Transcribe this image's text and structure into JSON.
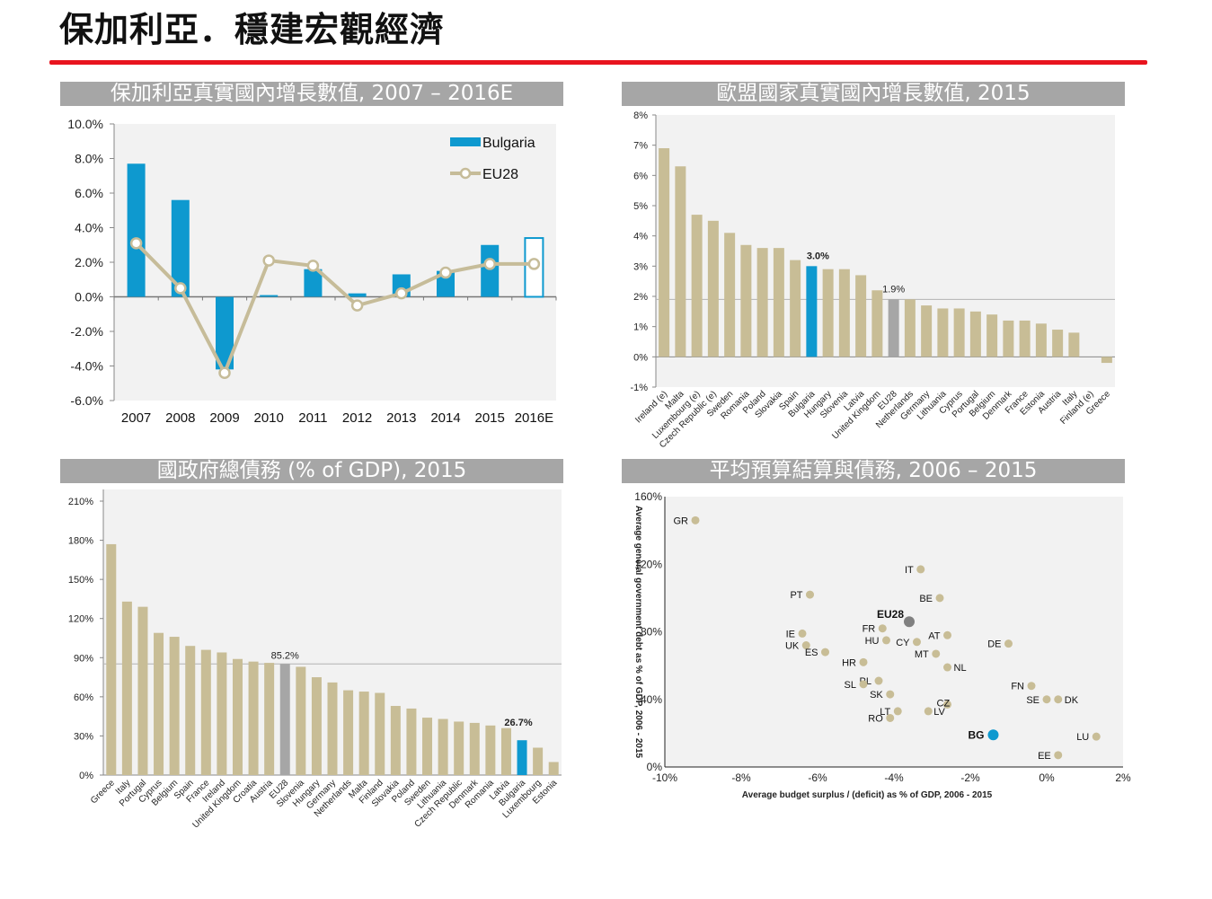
{
  "page": {
    "title": "保加利亞．穩建宏觀經濟"
  },
  "colors": {
    "accent_red": "#e8141e",
    "bulgaria_blue": "#0e99cf",
    "eu_grey": "#a6a6a6",
    "tan": "#c8bd96",
    "eu_line": "#c6bc99"
  },
  "chart_data": [
    {
      "type": "bar",
      "title": "保加利亞真實國內增長數值, 2007 – 2016E",
      "categories": [
        "2007",
        "2008",
        "2009",
        "2010",
        "2011",
        "2012",
        "2013",
        "2014",
        "2015",
        "2016E"
      ],
      "y_ticks": [
        "10.0%",
        "8.0%",
        "6.0%",
        "4.0%",
        "2.0%",
        "0.0%",
        "-2.0%",
        "-4.0%",
        "-6.0%"
      ],
      "ylim": [
        -6,
        10
      ],
      "legend": {
        "position": "top-right"
      },
      "series": [
        {
          "name": "Bulgaria",
          "kind": "bar",
          "color": "#0e99cf",
          "values": [
            7.7,
            5.6,
            -4.2,
            0.1,
            1.6,
            0.2,
            1.3,
            1.5,
            3.0,
            3.4
          ]
        },
        {
          "name": "EU28",
          "kind": "line",
          "color": "#c6bc99",
          "values": [
            3.1,
            0.5,
            -4.4,
            2.1,
            1.8,
            -0.5,
            0.2,
            1.4,
            1.9,
            1.9
          ]
        }
      ]
    },
    {
      "type": "bar",
      "title": "歐盟國家真實國內增長數值, 2015",
      "categories": [
        "Ireland (e)",
        "Malta",
        "Luxembourg (e)",
        "Czech Republic (e)",
        "Sweden",
        "Romania",
        "Poland",
        "Slovakia",
        "Spain",
        "Bulgaria",
        "Hungary",
        "Slovenia",
        "Latvia",
        "United Kingdom",
        "EU28",
        "Netherlands",
        "Germany",
        "Lithuania",
        "Cyprus",
        "Portugal",
        "Belgium",
        "Denmark",
        "France",
        "Estonia",
        "Austria",
        "Italy",
        "Finland (e)",
        "Greece"
      ],
      "values": [
        6.9,
        6.3,
        4.7,
        4.5,
        4.1,
        3.7,
        3.6,
        3.6,
        3.2,
        3.0,
        2.9,
        2.9,
        2.7,
        2.2,
        1.9,
        1.9,
        1.7,
        1.6,
        1.6,
        1.5,
        1.4,
        1.2,
        1.2,
        1.1,
        0.9,
        0.8,
        0.0,
        -0.2
      ],
      "y_ticks": [
        "8%",
        "7%",
        "6%",
        "5%",
        "4%",
        "3%",
        "2%",
        "1%",
        "0%",
        "-1%"
      ],
      "ylim": [
        -1,
        8
      ],
      "highlight": {
        "Bulgaria": "#0e99cf",
        "EU28": "#a6a6a6"
      },
      "labels": {
        "Bulgaria": "3.0%",
        "EU28": "1.9%"
      },
      "reference_line": 1.9
    },
    {
      "type": "bar",
      "title": "國政府總債務 (% of GDP), 2015",
      "categories": [
        "Greece",
        "Italy",
        "Portugal",
        "Cyprus",
        "Belgium",
        "Spain",
        "France",
        "Ireland",
        "United Kingdom",
        "Croatia",
        "Austria",
        "EU28",
        "Slovenia",
        "Hungary",
        "Germany",
        "Netherlands",
        "Malta",
        "Finland",
        "Slovakia",
        "Poland",
        "Sweden",
        "Lithuania",
        "Czech Republic",
        "Denmark",
        "Romania",
        "Latvia",
        "Bulgaria",
        "Luxembourg",
        "Estonia"
      ],
      "values": [
        177,
        133,
        129,
        109,
        106,
        99,
        96,
        94,
        89,
        87,
        86,
        85.2,
        83,
        75,
        71,
        65,
        64,
        63,
        53,
        51,
        44,
        43,
        41,
        40,
        38,
        36,
        26.7,
        21,
        10
      ],
      "y_ticks": [
        "210%",
        "180%",
        "150%",
        "120%",
        "90%",
        "60%",
        "30%",
        "0%"
      ],
      "ylim": [
        0,
        210
      ],
      "highlight": {
        "Bulgaria": "#0e99cf",
        "EU28": "#a6a6a6"
      },
      "labels": {
        "EU28": "85.2%",
        "Bulgaria": "26.7%"
      },
      "reference_line": 85.2
    },
    {
      "type": "scatter",
      "title": "平均預算結算與債務, 2006 – 2015",
      "xlabel": "Average budget surplus / (deficit) as % of GDP, 2006 - 2015",
      "ylabel": "Average general government debt as % of GDP, 2006 - 2015",
      "x_ticks": [
        "-10%",
        "-8%",
        "-6%",
        "-4%",
        "-2%",
        "0%",
        "2%"
      ],
      "y_ticks": [
        "160%",
        "120%",
        "80%",
        "40%",
        "0%"
      ],
      "xlim": [
        -10,
        2
      ],
      "ylim": [
        0,
        160
      ],
      "points": [
        {
          "label": "GR",
          "x": -9.2,
          "y": 146
        },
        {
          "label": "IT",
          "x": -3.3,
          "y": 117
        },
        {
          "label": "PT",
          "x": -6.2,
          "y": 102
        },
        {
          "label": "BE",
          "x": -2.8,
          "y": 100
        },
        {
          "label": "EU28",
          "x": -3.6,
          "y": 86
        },
        {
          "label": "FR",
          "x": -4.3,
          "y": 82
        },
        {
          "label": "IE",
          "x": -6.4,
          "y": 79
        },
        {
          "label": "AT",
          "x": -2.6,
          "y": 78
        },
        {
          "label": "HU",
          "x": -4.2,
          "y": 75
        },
        {
          "label": "CY",
          "x": -3.4,
          "y": 74
        },
        {
          "label": "DE",
          "x": -1.0,
          "y": 73
        },
        {
          "label": "UK",
          "x": -6.3,
          "y": 72
        },
        {
          "label": "ES",
          "x": -5.8,
          "y": 68
        },
        {
          "label": "MT",
          "x": -2.9,
          "y": 67
        },
        {
          "label": "HR",
          "x": -4.8,
          "y": 62
        },
        {
          "label": "NL",
          "x": -2.6,
          "y": 59
        },
        {
          "label": "PL",
          "x": -4.4,
          "y": 51
        },
        {
          "label": "SL",
          "x": -4.8,
          "y": 49
        },
        {
          "label": "FN",
          "x": -0.4,
          "y": 48
        },
        {
          "label": "SK",
          "x": -4.1,
          "y": 43
        },
        {
          "label": "SE",
          "x": 0.0,
          "y": 40
        },
        {
          "label": "DK",
          "x": 0.3,
          "y": 40
        },
        {
          "label": "CZ",
          "x": -2.6,
          "y": 37
        },
        {
          "label": "LT",
          "x": -3.9,
          "y": 33
        },
        {
          "label": "LV",
          "x": -3.1,
          "y": 33
        },
        {
          "label": "RO",
          "x": -4.1,
          "y": 29
        },
        {
          "label": "BG",
          "x": -1.4,
          "y": 19
        },
        {
          "label": "LU",
          "x": 1.3,
          "y": 18
        },
        {
          "label": "EE",
          "x": 0.3,
          "y": 7
        }
      ],
      "highlight": {
        "BG": "#0e99cf",
        "EU28": "#808080"
      },
      "bold_labels": [
        "BG",
        "EU28"
      ]
    }
  ]
}
